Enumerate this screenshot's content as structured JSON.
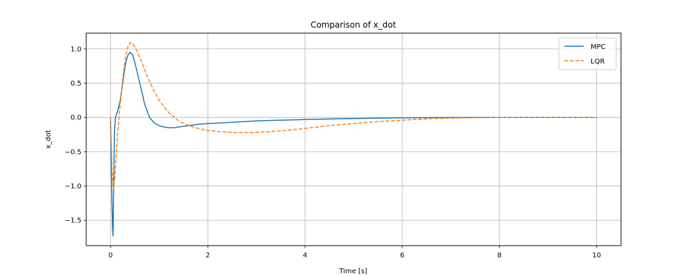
{
  "chart_data": {
    "type": "line",
    "title": "Comparison of x_dot",
    "xlabel": "Time [s]",
    "ylabel": "x_dot",
    "xlim": [
      -0.5,
      10.5
    ],
    "ylim": [
      -1.87,
      1.23
    ],
    "xticks": [
      0,
      2,
      4,
      6,
      8,
      10
    ],
    "xtick_labels": [
      "0",
      "2",
      "4",
      "6",
      "8",
      "10"
    ],
    "yticks": [
      1.0,
      0.5,
      0.0,
      -0.5,
      -1.0,
      -1.5
    ],
    "ytick_labels": [
      "1.0",
      "0.5",
      "0.0",
      "−0.5",
      "−1.0",
      "−1.5"
    ],
    "grid": true,
    "legend_position": "top-right",
    "series": [
      {
        "name": "MPC",
        "color": "#1f77b4",
        "dash": "solid",
        "x": [
          0,
          0.02,
          0.04,
          0.05,
          0.06,
          0.08,
          0.1,
          0.15,
          0.2,
          0.25,
          0.3,
          0.35,
          0.4,
          0.45,
          0.5,
          0.6,
          0.7,
          0.8,
          0.9,
          1.0,
          1.1,
          1.2,
          1.3,
          1.5,
          1.8,
          2.0,
          2.5,
          3.0,
          4.0,
          5.0,
          6.0,
          7.0,
          8.0,
          9.0,
          10.0
        ],
        "y": [
          0,
          -0.9,
          -1.6,
          -1.73,
          -1.2,
          -0.2,
          0.0,
          0.1,
          0.25,
          0.5,
          0.75,
          0.9,
          0.95,
          0.92,
          0.8,
          0.5,
          0.2,
          0.0,
          -0.08,
          -0.12,
          -0.14,
          -0.15,
          -0.15,
          -0.13,
          -0.1,
          -0.09,
          -0.07,
          -0.05,
          -0.03,
          -0.015,
          -0.005,
          0.0,
          0.0,
          0.0,
          0.0
        ]
      },
      {
        "name": "LQR",
        "color": "#ff7f0e",
        "dash": "dashed",
        "x": [
          0,
          0.03,
          0.06,
          0.09,
          0.12,
          0.15,
          0.2,
          0.25,
          0.3,
          0.35,
          0.4,
          0.45,
          0.5,
          0.6,
          0.7,
          0.8,
          0.9,
          1.0,
          1.2,
          1.4,
          1.6,
          1.8,
          2.0,
          2.3,
          2.6,
          2.9,
          3.2,
          3.6,
          4.0,
          4.5,
          5.0,
          5.5,
          6.0,
          6.5,
          7.0,
          7.5,
          8.0,
          9.0,
          10.0
        ],
        "y": [
          0,
          -0.75,
          -1.05,
          -0.85,
          -0.5,
          -0.2,
          0.2,
          0.55,
          0.85,
          1.02,
          1.09,
          1.08,
          1.03,
          0.88,
          0.7,
          0.53,
          0.38,
          0.25,
          0.07,
          -0.05,
          -0.12,
          -0.16,
          -0.19,
          -0.21,
          -0.22,
          -0.22,
          -0.21,
          -0.19,
          -0.16,
          -0.12,
          -0.09,
          -0.06,
          -0.04,
          -0.02,
          -0.01,
          -0.005,
          0.0,
          0.0,
          0.0
        ]
      }
    ]
  }
}
